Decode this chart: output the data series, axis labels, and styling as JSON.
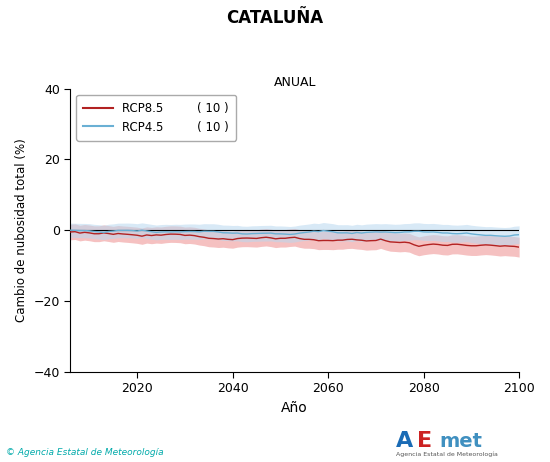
{
  "title": "CATALUÑA",
  "subtitle": "ANUAL",
  "xlabel": "Año",
  "ylabel": "Cambio de nubosidad total (%)",
  "xlim": [
    2006,
    2100
  ],
  "ylim": [
    -40,
    40
  ],
  "xticks": [
    2020,
    2040,
    2060,
    2080,
    2100
  ],
  "yticks": [
    -40,
    -20,
    0,
    20,
    40
  ],
  "rcp85_color": "#b22222",
  "rcp45_color": "#6ab0d4",
  "rcp85_fill_color": "#f0a0a0",
  "rcp45_fill_color": "#b8d8f0",
  "rcp85_label": "RCP8.5",
  "rcp45_label": "RCP4.5",
  "rcp85_count": "( 10 )",
  "rcp45_count": "( 10 )",
  "watermark": "© Agencia Estatal de Meteorología",
  "background_color": "#ffffff"
}
